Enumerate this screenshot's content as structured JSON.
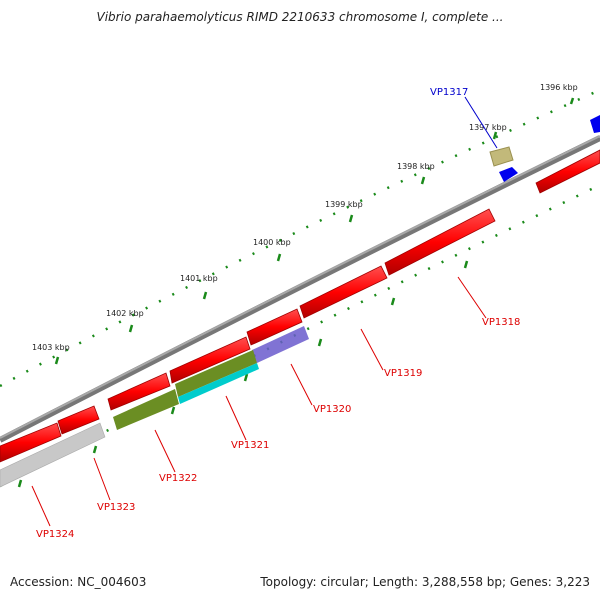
{
  "map": {
    "title": "Vibrio parahaemolyticus RIMD 2210633 chromosome I, complete ...",
    "accession_label": "Accession: NC_004603",
    "summary_label": "Topology: circular; Length: 3,288,558 bp; Genes: 3,223",
    "colors": {
      "backbone": "#7a7a7a",
      "gene_red": "#ff0000",
      "gene_blue": "#0000ee",
      "feature_khaki": "#c2b97a",
      "feature_olive": "#6b8e23",
      "feature_cyan": "#00cccc",
      "feature_slate": "#6a5acd",
      "feature_gray": "#c8c8c8",
      "tick_green": "#1a8a1a",
      "label_red": "#dd0000",
      "label_blue": "#0000cc"
    },
    "ruler": [
      {
        "label": "1396 kbp"
      },
      {
        "label": "1397 kbp"
      },
      {
        "label": "1398 kbp"
      },
      {
        "label": "1399 kbp"
      },
      {
        "label": "1400 kbp"
      },
      {
        "label": "1401 kbp"
      },
      {
        "label": "1402 kbp"
      },
      {
        "label": "1403 kbp"
      }
    ],
    "gene_labels": [
      {
        "name": "VP1317",
        "color": "blue"
      },
      {
        "name": "VP1318",
        "color": "red"
      },
      {
        "name": "VP1319",
        "color": "red"
      },
      {
        "name": "VP1320",
        "color": "red"
      },
      {
        "name": "VP1321",
        "color": "red"
      },
      {
        "name": "VP1322",
        "color": "red"
      },
      {
        "name": "VP1323",
        "color": "red"
      },
      {
        "name": "VP1324",
        "color": "red"
      }
    ]
  }
}
